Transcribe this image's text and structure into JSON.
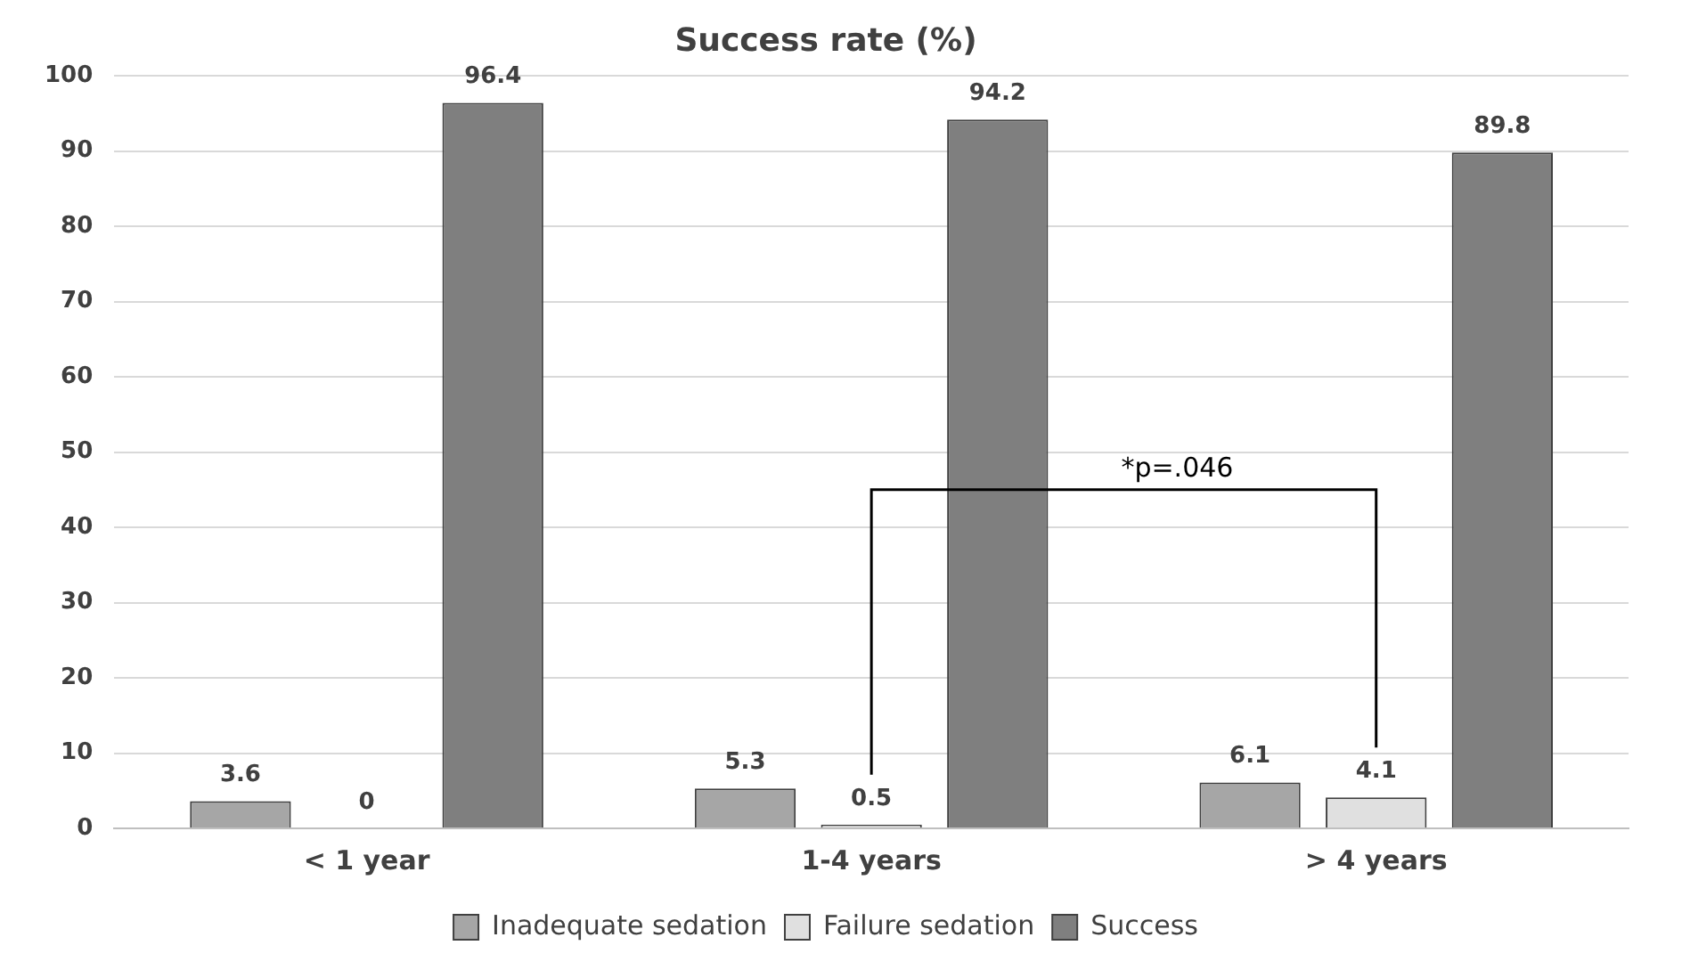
{
  "chart_data": {
    "type": "bar",
    "title": "Success rate (%)",
    "categories": [
      "< 1 year",
      "1-4 years",
      "> 4 years"
    ],
    "series": [
      {
        "name": "Inadequate sedation",
        "color": "#a6a6a6",
        "values": [
          3.6,
          5.3,
          6.1
        ]
      },
      {
        "name": "Failure sedation",
        "color": "#e0e0e0",
        "values": [
          0,
          0.5,
          4.1
        ]
      },
      {
        "name": "Success",
        "color": "#7f7f7f",
        "values": [
          96.4,
          94.2,
          89.8
        ]
      }
    ],
    "ylim": [
      0,
      100
    ],
    "yticks": [
      0,
      10,
      20,
      30,
      40,
      50,
      60,
      70,
      80,
      90,
      100
    ],
    "grid": "y",
    "legend": "bottom",
    "data_labels": true,
    "annotations": [
      "*p=.046"
    ]
  }
}
